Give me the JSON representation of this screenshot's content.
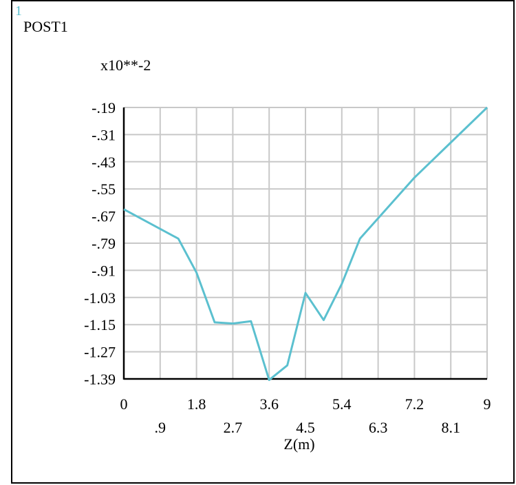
{
  "window_number": "1",
  "chart_data": {
    "type": "line",
    "title": "POST1",
    "multiplier_label": "x10**-2",
    "xlabel": "Z(m)",
    "ylabel": "",
    "xlim": [
      0,
      9
    ],
    "ylim": [
      -1.39,
      -0.19
    ],
    "x_ticks_upper": [
      "0",
      "1.8",
      "3.6",
      "5.4",
      "7.2",
      "9"
    ],
    "x_ticks_lower": [
      ".9",
      "2.7",
      "4.5",
      "6.3",
      "8.1"
    ],
    "y_ticks": [
      "-.19",
      "-.31",
      "-.43",
      "-.55",
      "-.67",
      "-.79",
      "-.91",
      "-1.03",
      "-1.15",
      "-1.27",
      "-1.39"
    ],
    "grid": true,
    "line_color": "#5bc0cf",
    "x": [
      0,
      1.35,
      1.8,
      2.25,
      2.7,
      3.15,
      3.6,
      4.05,
      4.5,
      4.95,
      5.4,
      5.85,
      7.2,
      9
    ],
    "y": [
      -0.64,
      -0.77,
      -0.92,
      -1.14,
      -1.145,
      -1.135,
      -1.395,
      -1.33,
      -1.01,
      -1.13,
      -0.97,
      -0.77,
      -0.5,
      -0.19
    ]
  }
}
